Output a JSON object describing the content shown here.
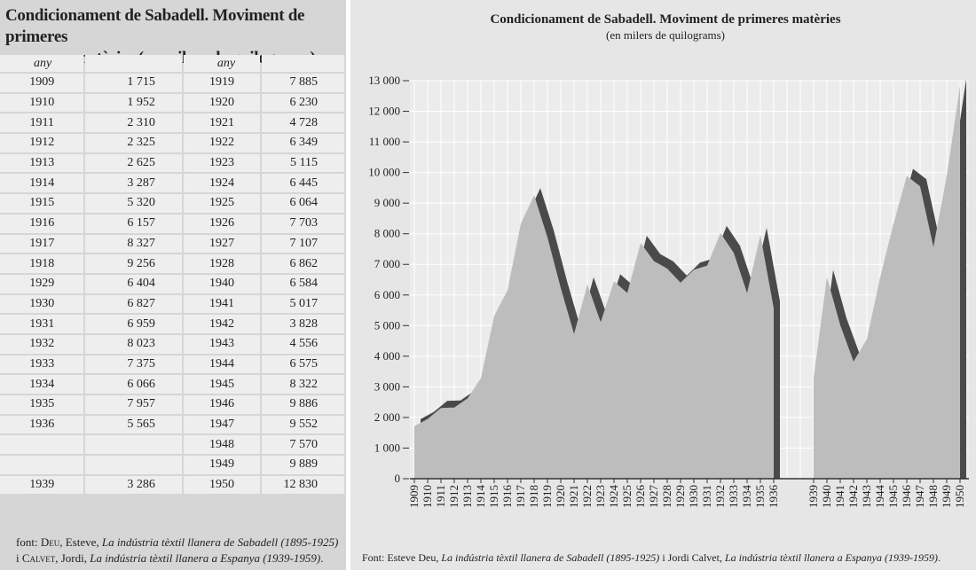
{
  "table": {
    "title_lines": [
      "Condicionament de Sabadell. Moviment de primeres",
      "matèries (en milers de quilograms)"
    ],
    "header": [
      "any",
      null,
      "any",
      null
    ],
    "rows": [
      [
        "1909",
        "1 715",
        "1919",
        "7 885"
      ],
      [
        "1910",
        "1 952",
        "1920",
        "6 230"
      ],
      [
        "1911",
        "2 310",
        "1921",
        "4 728"
      ],
      [
        "1912",
        "2 325",
        "1922",
        "6 349"
      ],
      [
        "1913",
        "2 625",
        "1923",
        "5 115"
      ],
      [
        "1914",
        "3 287",
        "1924",
        "6 445"
      ],
      [
        "1915",
        "5 320",
        "1925",
        "6 064"
      ],
      [
        "1916",
        "6 157",
        "1926",
        "7 703"
      ],
      [
        "1917",
        "8 327",
        "1927",
        "7 107"
      ],
      [
        "1918",
        "9 256",
        "1928",
        "6 862"
      ],
      [
        "1929",
        "6 404",
        "1940",
        "6 584"
      ],
      [
        "1930",
        "6 827",
        "1941",
        "5 017"
      ],
      [
        "1931",
        "6 959",
        "1942",
        "3 828"
      ],
      [
        "1932",
        "8 023",
        "1943",
        "4 556"
      ],
      [
        "1933",
        "7 375",
        "1944",
        "6 575"
      ],
      [
        "1934",
        "6 066",
        "1945",
        "8 322"
      ],
      [
        "1935",
        "7 957",
        "1946",
        "9 886"
      ],
      [
        "1936",
        "5 565",
        "1947",
        "9 552"
      ],
      [
        null,
        null,
        "1948",
        "7 570"
      ],
      [
        null,
        null,
        "1949",
        "9 889"
      ],
      [
        "1939",
        "3 286",
        "1950",
        "12 830"
      ]
    ],
    "source": [
      "font: ",
      "Deu",
      ", Esteve, ",
      "La indústria tèxtil llanera de Sabadell (1895-1925)",
      " i ",
      "Calvet",
      ", Jordi, ",
      "La indústria tèxtil llanera a Espanya (1939-1959)",
      "."
    ]
  },
  "chart_data": {
    "type": "area",
    "title": "Condicionament de Sabadell. Moviment de primeres matèries",
    "subtitle": "(en milers de quilograms)",
    "categories": [
      "1909",
      "1910",
      "1911",
      "1912",
      "1913",
      "1914",
      "1915",
      "1916",
      "1917",
      "1918",
      "1919",
      "1920",
      "1921",
      "1922",
      "1923",
      "1924",
      "1925",
      "1926",
      "1927",
      "1928",
      "1929",
      "1930",
      "1931",
      "1932",
      "1933",
      "1934",
      "1935",
      "1936",
      null,
      null,
      "1939",
      "1940",
      "1941",
      "1942",
      "1943",
      "1944",
      "1945",
      "1946",
      "1947",
      "1948",
      "1949",
      "1950"
    ],
    "values": [
      1715,
      1952,
      2310,
      2325,
      2625,
      3287,
      5320,
      6157,
      8327,
      9256,
      7885,
      6230,
      4728,
      6349,
      5115,
      6445,
      6064,
      7703,
      7107,
      6862,
      6404,
      6827,
      6959,
      8023,
      7375,
      6066,
      7957,
      5565,
      null,
      null,
      3286,
      6584,
      5017,
      3828,
      4556,
      6575,
      8322,
      9886,
      9552,
      7570,
      9889,
      12830
    ],
    "color": "#bdbdbd",
    "ylim": [
      0,
      13000
    ],
    "yticks": [
      0,
      {
        "value": 1000,
        "label": "1 000"
      },
      {
        "value": 2000,
        "label": "2 000"
      },
      {
        "value": 3000,
        "label": "3 000"
      },
      {
        "value": 4000,
        "label": "4 000"
      },
      {
        "value": 5000,
        "label": "5 000"
      },
      {
        "value": 6000,
        "label": "6 000"
      },
      {
        "value": 7000,
        "label": "7 000"
      },
      {
        "value": 8000,
        "label": "8 000"
      },
      {
        "value": 9000,
        "label": "9 000"
      },
      {
        "value": 10000,
        "label": "10 000"
      },
      {
        "value": 11000,
        "label": "11 000"
      },
      {
        "value": 12000,
        "label": "12 000"
      },
      {
        "value": 13000,
        "label": "13 000"
      }
    ],
    "grid": true
  },
  "chart_source": [
    "Font: Esteve Deu, ",
    "La indústria tèxtil llanera de Sabadell (1895-1925)",
    " i Jordi Calvet, ",
    "La indústria tèxtil llanera a Espanya (1939-1959)",
    "."
  ]
}
